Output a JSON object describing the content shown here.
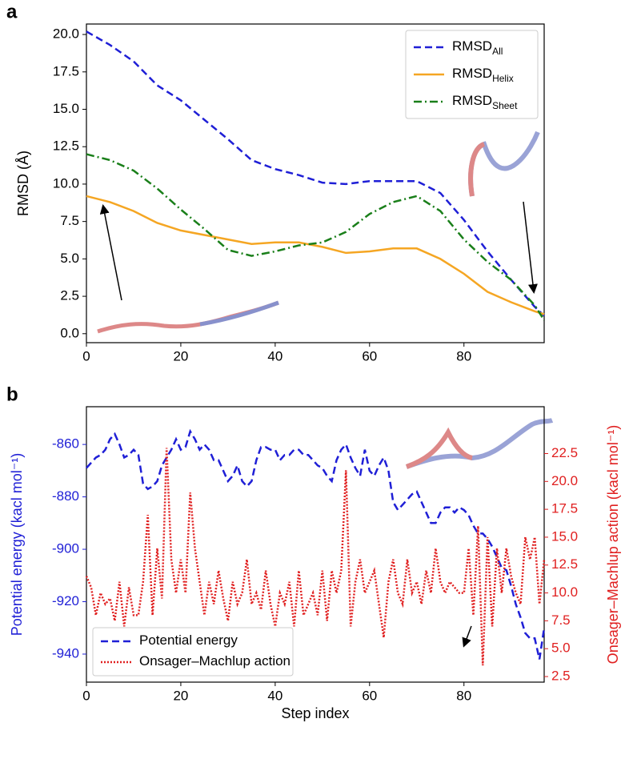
{
  "chart_data": [
    {
      "type": "line",
      "panel": "a",
      "ylabel": "RMSD (Å)",
      "x": [
        0,
        5,
        10,
        15,
        20,
        25,
        30,
        35,
        40,
        45,
        50,
        55,
        60,
        65,
        70,
        75,
        80,
        85,
        90,
        95,
        97
      ],
      "xlim": [
        0,
        97
      ],
      "xticks": [
        0,
        20,
        40,
        60,
        80
      ],
      "ylim": [
        -0.6,
        20.7
      ],
      "yticks": [
        {
          "value": 0,
          "label": "0.0"
        },
        2.5,
        {
          "value": 5,
          "label": "5.0"
        },
        7.5,
        {
          "value": 10,
          "label": "10.0"
        },
        12.5,
        {
          "value": 15,
          "label": "15.0"
        },
        17.5,
        {
          "value": 20,
          "label": "20.0"
        }
      ],
      "legend": "upper right",
      "series": [
        {
          "name": "RMSD",
          "name_sub": "All",
          "color": "#1f1fd6",
          "linestyle": "dashed",
          "values": [
            20.2,
            19.3,
            18.2,
            16.6,
            15.6,
            14.3,
            13.0,
            11.6,
            11.0,
            10.6,
            10.1,
            10.0,
            10.2,
            10.2,
            10.2,
            9.4,
            7.6,
            5.5,
            3.6,
            1.8,
            1.2
          ]
        },
        {
          "name": "RMSD",
          "name_sub": "Helix",
          "color": "#f5a623",
          "linestyle": "solid",
          "values": [
            9.2,
            8.8,
            8.2,
            7.4,
            6.9,
            6.6,
            6.3,
            6.0,
            6.1,
            6.1,
            5.8,
            5.4,
            5.5,
            5.7,
            5.7,
            5.0,
            4.0,
            2.8,
            2.1,
            1.5,
            1.3
          ]
        },
        {
          "name": "RMSD",
          "name_sub": "Sheet",
          "color": "#1a7f1a",
          "linestyle": "dashdot",
          "values": [
            12.0,
            11.6,
            10.9,
            9.7,
            8.3,
            7.0,
            5.6,
            5.2,
            5.5,
            5.9,
            6.1,
            6.8,
            8.0,
            8.8,
            9.2,
            8.2,
            6.3,
            4.8,
            3.6,
            1.9,
            0.9
          ]
        }
      ]
    },
    {
      "type": "line",
      "panel": "b",
      "xlabel": "Step index",
      "ylabel": "Potential energy (kacl mol⁻¹)",
      "y2label": "Onsager–Machlup action (kacl mol⁻¹)",
      "ycolor": "#1f1fd6",
      "y2color": "#e02020",
      "x": [
        0,
        1,
        2,
        3,
        4,
        5,
        6,
        7,
        8,
        9,
        10,
        11,
        12,
        13,
        14,
        15,
        16,
        17,
        18,
        19,
        20,
        21,
        22,
        23,
        24,
        25,
        26,
        27,
        28,
        29,
        30,
        31,
        32,
        33,
        34,
        35,
        36,
        37,
        38,
        39,
        40,
        41,
        42,
        43,
        44,
        45,
        46,
        47,
        48,
        49,
        50,
        51,
        52,
        53,
        54,
        55,
        56,
        57,
        58,
        59,
        60,
        61,
        62,
        63,
        64,
        65,
        66,
        67,
        68,
        69,
        70,
        71,
        72,
        73,
        74,
        75,
        76,
        77,
        78,
        79,
        80,
        81,
        82,
        83,
        84,
        85,
        86,
        87,
        88,
        89,
        90,
        91,
        92,
        93,
        94,
        95,
        96,
        97
      ],
      "xlim": [
        0,
        97
      ],
      "xticks": [
        0,
        20,
        40,
        60,
        80
      ],
      "ylim": [
        -950.7,
        -845.6
      ],
      "yticks": [
        -940,
        -920,
        -900,
        -880,
        -860
      ],
      "y2lim": [
        2.0,
        26.7
      ],
      "y2ticks": [
        2.5,
        {
          "value": 5,
          "label": "5.0"
        },
        7.5,
        {
          "value": 10,
          "label": "10.0"
        },
        12.5,
        {
          "value": 15,
          "label": "15.0"
        },
        17.5,
        {
          "value": 20,
          "label": "20.0"
        },
        22.5
      ],
      "legend": "lower left",
      "series": [
        {
          "name": "Potential energy",
          "color": "#1f1fd6",
          "linestyle": "dashed",
          "values": [
            -869,
            -867,
            -865,
            -864,
            -862,
            -858,
            -856,
            -860,
            -865,
            -864,
            -862,
            -864,
            -875,
            -877,
            -876,
            -874,
            -868,
            -865,
            -862,
            -858,
            -862,
            -861,
            -855,
            -858,
            -862,
            -860,
            -862,
            -866,
            -866,
            -870,
            -874,
            -872,
            -868,
            -874,
            -876,
            -874,
            -866,
            -861,
            -861,
            -862,
            -862,
            -866,
            -864,
            -864,
            -862,
            -862,
            -864,
            -864,
            -866,
            -868,
            -869,
            -872,
            -874,
            -866,
            -862,
            -860,
            -865,
            -869,
            -872,
            -862,
            -870,
            -872,
            -868,
            -865,
            -870,
            -882,
            -885,
            -883,
            -881,
            -879,
            -878,
            -882,
            -886,
            -890,
            -890,
            -886,
            -884,
            -884,
            -886,
            -884,
            -885,
            -887,
            -891,
            -894,
            -894,
            -896,
            -899,
            -903,
            -907,
            -908,
            -914,
            -921,
            -926,
            -932,
            -934,
            -934,
            -942,
            -930
          ]
        },
        {
          "name": "Onsager–Machlup action",
          "color": "#e02020",
          "linestyle": "dotted",
          "axis": "y2",
          "values": [
            11.5,
            10.5,
            8,
            10,
            9,
            9.5,
            7.5,
            11,
            7,
            10.5,
            8,
            8,
            11,
            17,
            8,
            14,
            9.5,
            23,
            13,
            10,
            13,
            10,
            19,
            14,
            11,
            8,
            11,
            9,
            12,
            9.5,
            7.5,
            11,
            9,
            10,
            13,
            9,
            10,
            8.5,
            12,
            9,
            7,
            10,
            9,
            11,
            7,
            12,
            8,
            9,
            10,
            8,
            12,
            7.5,
            12,
            10,
            12,
            21,
            7,
            11,
            13,
            10,
            11,
            12,
            9,
            6,
            11,
            13,
            10,
            9,
            13,
            10,
            11,
            9,
            12,
            10,
            14,
            11,
            10,
            11,
            10.5,
            10,
            10,
            14,
            8,
            16,
            3.5,
            15,
            7,
            14,
            10,
            14,
            11.5,
            10,
            9,
            15,
            13,
            15,
            9,
            13
          ]
        }
      ]
    }
  ]
}
